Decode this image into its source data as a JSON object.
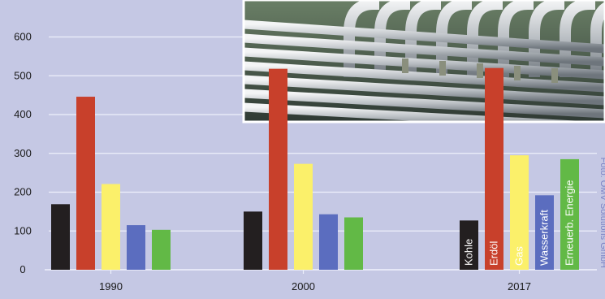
{
  "chart_data": {
    "type": "bar",
    "categories": [
      "1990",
      "2000",
      "2017"
    ],
    "series": [
      {
        "name": "Kohle",
        "color": "#231f20",
        "values": [
          169,
          150,
          127
        ]
      },
      {
        "name": "Erdöl",
        "color": "#c8402b",
        "values": [
          446,
          518,
          520
        ]
      },
      {
        "name": "Gas",
        "color": "#fbf06a",
        "values": [
          221,
          273,
          295
        ]
      },
      {
        "name": "Wasserkraft",
        "color": "#5b6dbf",
        "values": [
          115,
          143,
          192
        ]
      },
      {
        "name": "Erneuerb. Energie",
        "color": "#62b946",
        "values": [
          103,
          135,
          285
        ]
      }
    ],
    "yticks": [
      0,
      100,
      200,
      300,
      400,
      500,
      600
    ],
    "ylim": [
      0,
      650
    ],
    "grid": true,
    "legend": "labels inside bars of last group",
    "title": "",
    "xlabel": "",
    "ylabel": ""
  },
  "photo": {
    "icon": "industrial-pipelines-photo"
  },
  "credit": "Foto: OMV Solutions GmbH"
}
